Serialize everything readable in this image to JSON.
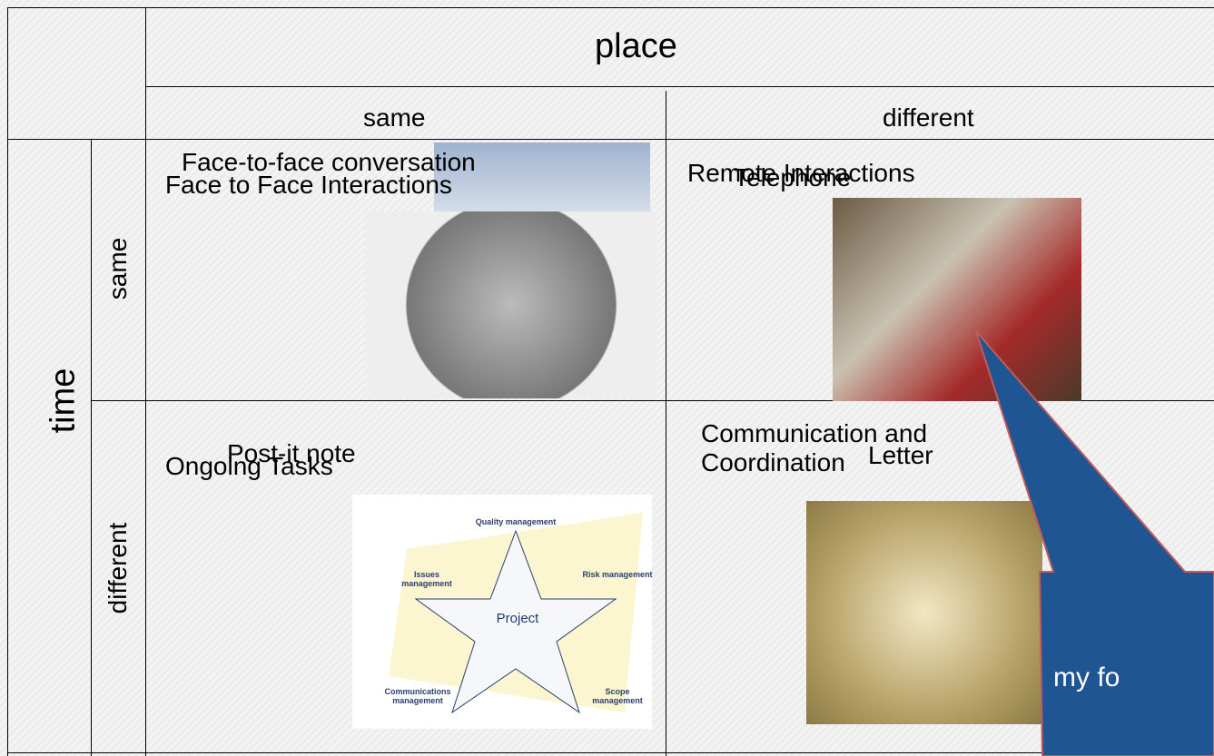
{
  "header": {
    "place": "place",
    "same": "same",
    "different": "different"
  },
  "side": {
    "time": "time",
    "same": "same",
    "different": "different"
  },
  "cells": [
    {
      "title": "Face to Face Interactions",
      "example": "Face-to-face conversation"
    },
    {
      "title": "Remote Interactions",
      "example": "Telephone"
    },
    {
      "title": "Ongoing Tasks",
      "example": "Post-it note"
    },
    {
      "title": "Communication and Coordination",
      "example": "Letter"
    }
  ],
  "diagram": [
    "Quality management",
    "Issues management",
    "Risk management",
    "Project",
    "Communications management",
    "Scope management"
  ],
  "callout": "my fo"
}
